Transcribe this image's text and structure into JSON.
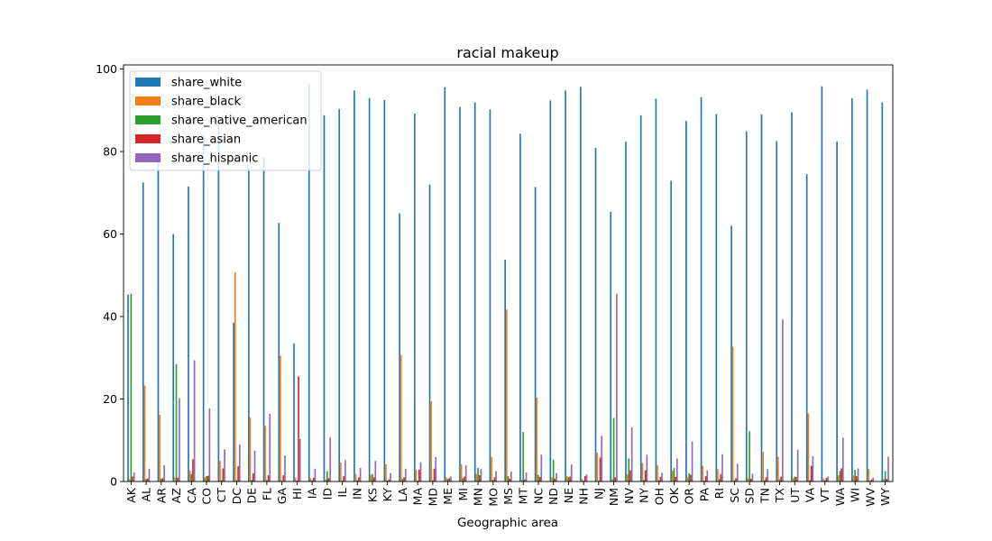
{
  "chart_data": {
    "type": "bar",
    "title": "racial makeup",
    "xlabel": "Geographic area",
    "ylabel": "",
    "ylim": [
      0,
      101
    ],
    "yticks": [
      0,
      20,
      40,
      60,
      80,
      100
    ],
    "grid": false,
    "legend_position": "top-left",
    "categories": [
      "AK",
      "AL",
      "AR",
      "AZ",
      "CA",
      "CO",
      "CT",
      "DC",
      "DE",
      "FL",
      "GA",
      "HI",
      "IA",
      "ID",
      "IL",
      "IN",
      "KS",
      "KY",
      "LA",
      "MA",
      "MD",
      "ME",
      "MI",
      "MN",
      "MO",
      "MS",
      "MT",
      "NC",
      "ND",
      "NE",
      "NH",
      "NJ",
      "NM",
      "NV",
      "NY",
      "OH",
      "OK",
      "OR",
      "PA",
      "RI",
      "SC",
      "SD",
      "TN",
      "TX",
      "UT",
      "VA",
      "VT",
      "WA",
      "WI",
      "WV",
      "WY"
    ],
    "series": [
      {
        "name": "share_white",
        "color": "#1f77b4",
        "values": [
          45.3,
          72.5,
          79,
          60,
          71.5,
          84,
          86.5,
          38.5,
          76,
          78.5,
          62.7,
          33.5,
          96.5,
          88.8,
          90.3,
          94.8,
          93,
          92.5,
          65,
          89.2,
          72,
          95.6,
          90.8,
          91.9,
          90.2,
          53.8,
          84.3,
          71.4,
          92.4,
          94.8,
          95.7,
          80.9,
          65.4,
          82.4,
          88.8,
          92.8,
          72.9,
          87.4,
          93.2,
          89.1,
          62,
          84.9,
          89,
          82.5,
          89.5,
          74.5,
          95.8,
          82.4,
          92.9,
          95,
          91.9
        ]
      },
      {
        "name": "share_black",
        "color": "#ff7f0e",
        "values": [
          0.6,
          23.3,
          16.2,
          1,
          2.6,
          1,
          5,
          50.7,
          15.5,
          13.5,
          30.5,
          1,
          0.8,
          0.5,
          4.6,
          1.8,
          1.6,
          4.2,
          30.7,
          2.8,
          19.5,
          1,
          4.2,
          1.8,
          6,
          41.7,
          0.4,
          20.3,
          1,
          1.3,
          0.6,
          7,
          0.6,
          1.7,
          4.5,
          4,
          2.6,
          1,
          3.8,
          3,
          32.7,
          0.8,
          7.2,
          6,
          0.8,
          16.5,
          0.7,
          1.5,
          1.5,
          3,
          0.6
        ]
      },
      {
        "name": "share_native_american",
        "color": "#2ca02c",
        "values": [
          45.5,
          0.6,
          0.7,
          28.5,
          1.8,
          1.3,
          0.3,
          0.3,
          0.4,
          0.3,
          0.2,
          0.2,
          0.3,
          2.5,
          0.2,
          0.3,
          1.8,
          0.2,
          0.6,
          0.2,
          0.3,
          0.6,
          0.8,
          3.3,
          0.4,
          1.3,
          12,
          1.6,
          5.3,
          1,
          0.2,
          0.2,
          15.4,
          5.6,
          0.4,
          0.3,
          3.3,
          2,
          0.2,
          0.6,
          0.3,
          12.2,
          0.3,
          0.5,
          1.2,
          0.3,
          0.3,
          2.6,
          2.8,
          0.2,
          2.5
        ]
      },
      {
        "name": "share_asian",
        "color": "#d62728",
        "values": [
          1.2,
          0.7,
          0.8,
          0.9,
          5.4,
          1.4,
          3.2,
          3.7,
          2,
          1.5,
          1.5,
          25.5,
          0.9,
          0.8,
          1.3,
          1,
          1,
          0.5,
          1,
          2.9,
          3.1,
          0.8,
          1.2,
          1.5,
          1,
          0.7,
          0.5,
          1.1,
          0.7,
          1.2,
          1.3,
          5.8,
          1,
          2.7,
          2.7,
          1.1,
          1.1,
          1.6,
          1.3,
          1.8,
          0.8,
          0.7,
          1,
          1.2,
          1.1,
          3.8,
          0.9,
          3.2,
          1.3,
          0.5,
          0.6
        ]
      },
      {
        "name": "share_hispanic",
        "color": "#9467bd",
        "values": [
          2.2,
          3.1,
          4,
          20.2,
          29.4,
          17.7,
          7.8,
          9,
          7.5,
          16.4,
          6.3,
          10.3,
          3.1,
          10.7,
          5.2,
          3.3,
          5,
          2,
          3.1,
          4.7,
          5.9,
          1.2,
          3.9,
          3,
          2.5,
          2.4,
          2.2,
          6.5,
          2,
          4.1,
          1.7,
          11.1,
          45.5,
          13.1,
          6.5,
          2.1,
          5.6,
          9.7,
          2.7,
          6.6,
          4.3,
          1.9,
          3,
          39.3,
          7.7,
          6.1,
          1.2,
          10.6,
          3.2,
          0.9,
          6
        ]
      }
    ]
  }
}
